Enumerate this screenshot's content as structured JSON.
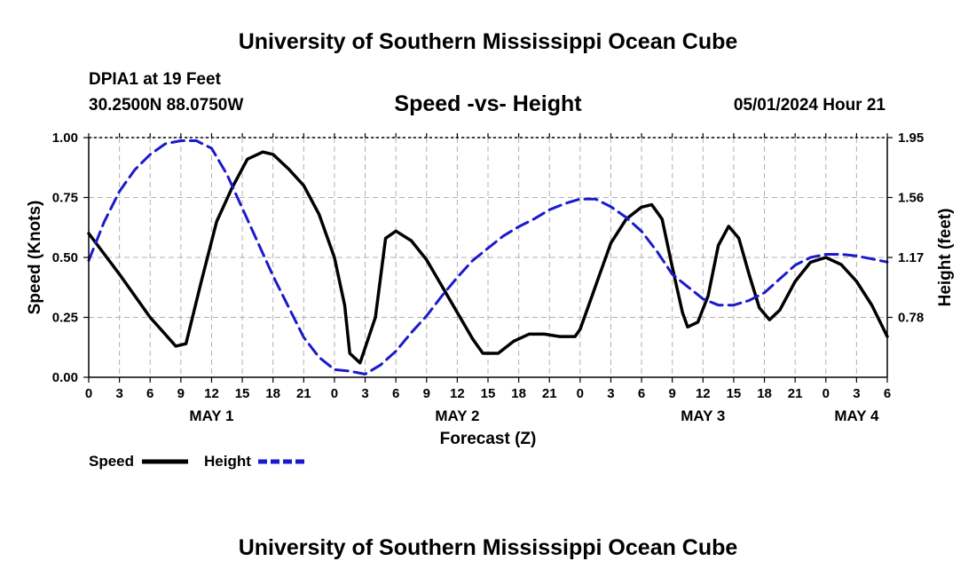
{
  "header": {
    "title": "University of Southern Mississippi Ocean Cube",
    "station": "DPIA1 at 19 Feet",
    "location": "30.2500N  88.0750W",
    "chart_title": "Speed -vs- Height",
    "datetime": "05/01/2024 Hour 21"
  },
  "footer": {
    "title": "University of Southern Mississippi Ocean Cube"
  },
  "legend": {
    "speed_label": "Speed",
    "height_label": "Height"
  },
  "colors": {
    "speed": "#000000",
    "height": "#1a1acc",
    "grid": "#b0b0b0"
  },
  "chart_data": {
    "type": "line",
    "title": "Speed -vs- Height",
    "xlabel": "Forecast (Z)",
    "ylabel": "Speed (Knots)",
    "y2label": "Height (feet)",
    "xlim": [
      0,
      78
    ],
    "ylim": [
      0,
      1.0
    ],
    "y2lim": [
      0.39,
      1.95
    ],
    "x_ticks": [
      0,
      3,
      6,
      9,
      12,
      15,
      18,
      21,
      24,
      27,
      30,
      33,
      36,
      39,
      42,
      45,
      48,
      51,
      54,
      57,
      60,
      63,
      66,
      69,
      72,
      75,
      78
    ],
    "x_tick_labels": [
      "0",
      "3",
      "6",
      "9",
      "12",
      "15",
      "18",
      "21",
      "0",
      "3",
      "6",
      "9",
      "12",
      "15",
      "18",
      "21",
      "0",
      "3",
      "6",
      "9",
      "12",
      "15",
      "18",
      "21",
      "0",
      "3",
      "6"
    ],
    "y_ticks": [
      0.0,
      0.25,
      0.5,
      0.75,
      1.0
    ],
    "y_tick_labels": [
      "0.00",
      "0.25",
      "0.50",
      "0.75",
      "1.00"
    ],
    "y2_ticks": [
      0.78,
      1.17,
      1.56,
      1.95
    ],
    "y2_tick_labels": [
      "0.78",
      "1.17",
      "1.56",
      "1.95"
    ],
    "day_labels": [
      {
        "label": "MAY 1",
        "x": 12
      },
      {
        "label": "MAY 2",
        "x": 36
      },
      {
        "label": "MAY 3",
        "x": 60
      },
      {
        "label": "MAY 4",
        "x": 75
      }
    ],
    "series": [
      {
        "name": "Speed",
        "axis": "left",
        "style": "solid",
        "x": [
          0,
          3,
          6,
          8.5,
          9.5,
          11,
          12.5,
          14,
          15.5,
          17,
          18,
          19.5,
          21,
          22.5,
          24,
          25,
          25.5,
          26.5,
          28,
          29,
          30,
          31.5,
          33,
          34.5,
          36,
          37.5,
          38.5,
          40,
          41.5,
          43,
          44.5,
          46,
          47.5,
          48,
          49,
          50,
          51,
          52.5,
          54,
          55,
          56,
          57,
          58,
          58.5,
          59.5,
          60.5,
          61.5,
          62.5,
          63.5,
          64.5,
          65.5,
          66.5,
          67.5,
          69,
          70.5,
          72,
          73.5,
          75,
          76.5,
          78
        ],
        "values": [
          0.6,
          0.43,
          0.25,
          0.13,
          0.14,
          0.4,
          0.65,
          0.79,
          0.91,
          0.94,
          0.93,
          0.87,
          0.8,
          0.68,
          0.5,
          0.3,
          0.1,
          0.06,
          0.25,
          0.58,
          0.61,
          0.57,
          0.49,
          0.38,
          0.27,
          0.16,
          0.1,
          0.1,
          0.15,
          0.18,
          0.18,
          0.17,
          0.17,
          0.2,
          0.32,
          0.44,
          0.56,
          0.66,
          0.71,
          0.72,
          0.66,
          0.46,
          0.27,
          0.21,
          0.23,
          0.34,
          0.55,
          0.63,
          0.58,
          0.43,
          0.29,
          0.24,
          0.28,
          0.4,
          0.48,
          0.5,
          0.47,
          0.4,
          0.3,
          0.17
        ]
      },
      {
        "name": "Height",
        "axis": "right",
        "style": "dashed",
        "x": [
          0,
          1.5,
          3,
          4.5,
          6,
          7.5,
          9,
          10.5,
          12,
          13.5,
          15,
          16.5,
          18,
          19.5,
          21,
          22.5,
          24,
          25.5,
          27,
          28.5,
          30,
          31.5,
          33,
          34.5,
          36,
          37.5,
          39,
          40.5,
          42,
          43.5,
          45,
          46.5,
          48,
          49.5,
          51,
          52.5,
          54,
          55.5,
          57,
          58.5,
          60,
          61.5,
          63,
          64.5,
          66,
          67.5,
          69,
          70.5,
          72,
          73.5,
          75,
          76.5,
          78
        ],
        "values": [
          1.15,
          1.4,
          1.6,
          1.74,
          1.84,
          1.91,
          1.93,
          1.93,
          1.88,
          1.71,
          1.49,
          1.27,
          1.05,
          0.85,
          0.65,
          0.52,
          0.44,
          0.43,
          0.41,
          0.47,
          0.56,
          0.68,
          0.79,
          0.92,
          1.04,
          1.15,
          1.23,
          1.31,
          1.37,
          1.42,
          1.48,
          1.52,
          1.55,
          1.55,
          1.5,
          1.43,
          1.34,
          1.21,
          1.06,
          0.98,
          0.9,
          0.86,
          0.86,
          0.89,
          0.94,
          1.03,
          1.12,
          1.17,
          1.19,
          1.19,
          1.18,
          1.16,
          1.14
        ]
      }
    ]
  }
}
